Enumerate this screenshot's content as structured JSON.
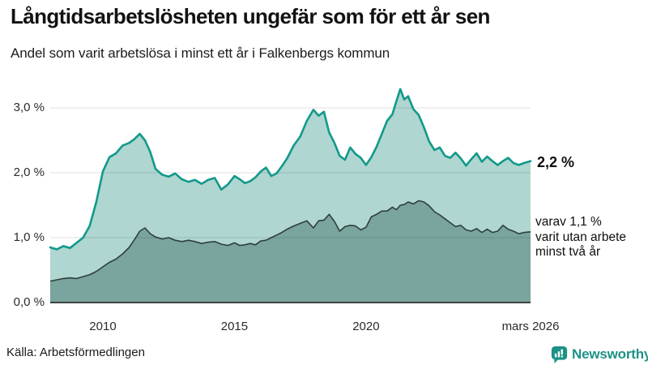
{
  "header": {
    "title": "Långtidsarbetslösheten ungefär som för ett år sen",
    "subtitle": "Andel som varit arbetslösa i minst ett år i Falkenbergs kommun"
  },
  "annotations": {
    "latest_total": "2,2 %",
    "latest_two_year": "varav 1,1 %\nvarit utan arbete\nminst två år"
  },
  "footer": {
    "source": "Källa: Arbetsförmedlingen",
    "logo_text": "Newsworthy",
    "logo_icon": "bar-chart-speech-bubble-icon"
  },
  "colors": {
    "total_line": "#12998a",
    "total_fill": "#afd6d0",
    "two_year_line": "#2e3f3c",
    "two_year_fill": "#7aa49e",
    "gridline": "rgba(0,0,0,0.10)",
    "baseline": "#2e2e2e",
    "logo": "#1d9185"
  },
  "chart_data": {
    "type": "area",
    "title": "Andel som varit arbetslösa i minst ett år i Falkenbergs kommun",
    "unit": "%",
    "x_domain": [
      2008,
      2026.25
    ],
    "ylim": [
      0,
      3.5
    ],
    "grid": true,
    "legend_position": "right-annotations",
    "y_ticks": [
      {
        "value": 0,
        "label": "0,0 %"
      },
      {
        "value": 1,
        "label": "1,0 %"
      },
      {
        "value": 2,
        "label": "2,0 %"
      },
      {
        "value": 3,
        "label": "3,0 %"
      }
    ],
    "x_ticks": [
      {
        "year": 2010,
        "label": "2010"
      },
      {
        "year": 2015,
        "label": "2015"
      },
      {
        "year": 2020,
        "label": "2020"
      },
      {
        "year": 2026.25,
        "label": "mars 2026"
      }
    ],
    "x": [
      2008.0,
      2008.25,
      2008.5,
      2008.75,
      2009.0,
      2009.25,
      2009.5,
      2009.75,
      2010.0,
      2010.25,
      2010.5,
      2010.75,
      2011.0,
      2011.2,
      2011.4,
      2011.6,
      2011.8,
      2012.0,
      2012.25,
      2012.5,
      2012.75,
      2013.0,
      2013.25,
      2013.5,
      2013.75,
      2014.0,
      2014.25,
      2014.5,
      2014.75,
      2015.0,
      2015.2,
      2015.4,
      2015.6,
      2015.8,
      2016.0,
      2016.2,
      2016.4,
      2016.6,
      2016.8,
      2017.0,
      2017.25,
      2017.5,
      2017.75,
      2018.0,
      2018.2,
      2018.4,
      2018.6,
      2018.8,
      2019.0,
      2019.2,
      2019.4,
      2019.6,
      2019.8,
      2020.0,
      2020.2,
      2020.4,
      2020.6,
      2020.8,
      2021.0,
      2021.15,
      2021.3,
      2021.45,
      2021.6,
      2021.8,
      2022.0,
      2022.2,
      2022.4,
      2022.6,
      2022.8,
      2023.0,
      2023.2,
      2023.4,
      2023.6,
      2023.8,
      2024.0,
      2024.2,
      2024.4,
      2024.6,
      2024.8,
      2025.0,
      2025.2,
      2025.4,
      2025.6,
      2025.8,
      2026.0,
      2026.25
    ],
    "series": [
      {
        "name": "Andel arbetslösa minst ett år",
        "latest_value": 2.2,
        "values": [
          0.85,
          0.82,
          0.87,
          0.84,
          0.92,
          1.0,
          1.18,
          1.55,
          2.02,
          2.24,
          2.3,
          2.42,
          2.46,
          2.52,
          2.6,
          2.5,
          2.32,
          2.06,
          1.97,
          1.94,
          1.99,
          1.9,
          1.86,
          1.89,
          1.83,
          1.89,
          1.92,
          1.74,
          1.82,
          1.95,
          1.9,
          1.84,
          1.87,
          1.93,
          2.02,
          2.08,
          1.95,
          1.99,
          2.1,
          2.22,
          2.42,
          2.56,
          2.8,
          2.97,
          2.88,
          2.94,
          2.62,
          2.46,
          2.26,
          2.2,
          2.39,
          2.29,
          2.23,
          2.12,
          2.24,
          2.4,
          2.6,
          2.8,
          2.9,
          3.1,
          3.29,
          3.13,
          3.18,
          2.98,
          2.89,
          2.7,
          2.48,
          2.35,
          2.39,
          2.26,
          2.23,
          2.31,
          2.22,
          2.11,
          2.21,
          2.3,
          2.17,
          2.25,
          2.18,
          2.12,
          2.18,
          2.23,
          2.15,
          2.12,
          2.15,
          2.18
        ]
      },
      {
        "name": "varav utan arbete minst två år",
        "latest_value": 1.1,
        "values": [
          0.33,
          0.35,
          0.37,
          0.38,
          0.37,
          0.4,
          0.43,
          0.48,
          0.55,
          0.62,
          0.67,
          0.75,
          0.85,
          0.97,
          1.1,
          1.15,
          1.06,
          1.01,
          0.98,
          1.0,
          0.96,
          0.94,
          0.96,
          0.94,
          0.91,
          0.93,
          0.94,
          0.9,
          0.88,
          0.92,
          0.88,
          0.89,
          0.91,
          0.89,
          0.95,
          0.96,
          1.0,
          1.04,
          1.08,
          1.13,
          1.18,
          1.22,
          1.26,
          1.15,
          1.26,
          1.27,
          1.36,
          1.25,
          1.1,
          1.17,
          1.19,
          1.18,
          1.12,
          1.16,
          1.32,
          1.36,
          1.41,
          1.41,
          1.47,
          1.43,
          1.5,
          1.51,
          1.55,
          1.52,
          1.57,
          1.55,
          1.49,
          1.4,
          1.35,
          1.29,
          1.23,
          1.17,
          1.19,
          1.12,
          1.1,
          1.14,
          1.08,
          1.13,
          1.08,
          1.1,
          1.19,
          1.13,
          1.1,
          1.06,
          1.08,
          1.09
        ]
      }
    ]
  }
}
